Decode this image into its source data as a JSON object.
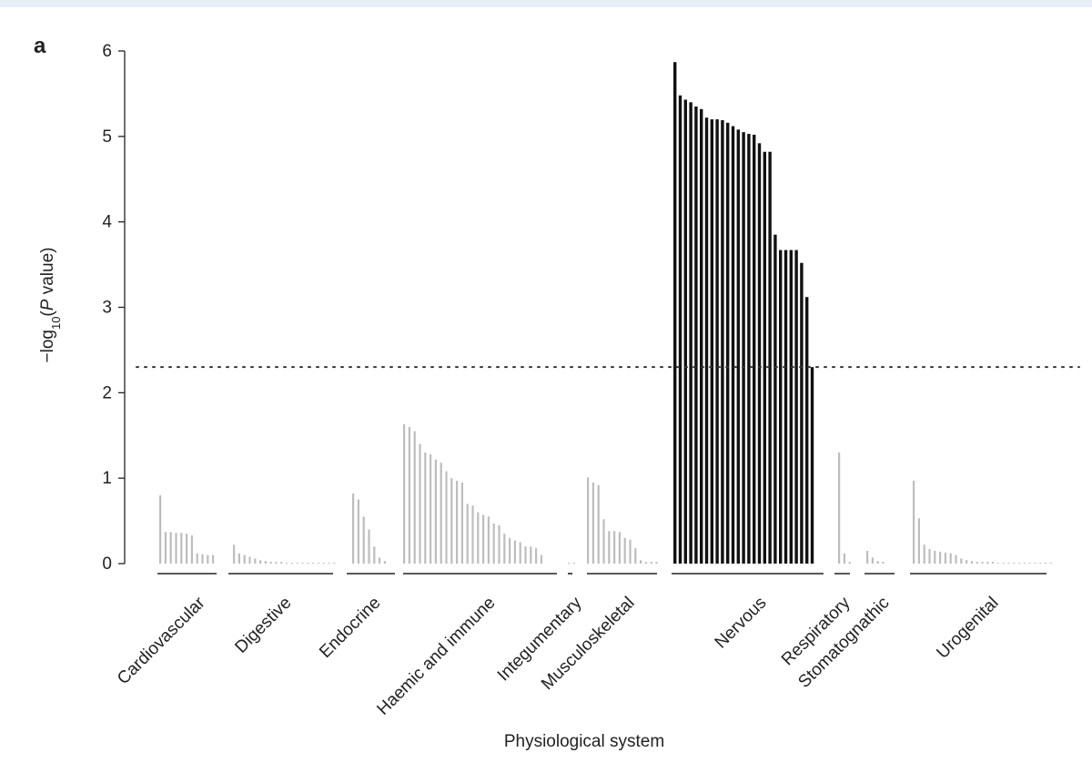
{
  "colors": {
    "topbar": "#e7eef6",
    "highlight": "#111111",
    "muted": "#bdbdbd",
    "axis": "#222222",
    "threshold": "#333333"
  },
  "chart_data": {
    "type": "bar",
    "panel_label": "a",
    "title": "",
    "xlabel": "Physiological system",
    "ylabel_prefix": "−log",
    "ylabel_sub": "10",
    "ylabel_open": "(",
    "ylabel_italic": "P",
    "ylabel_suffix": " value)",
    "ylim": [
      0,
      6
    ],
    "yticks": [
      0,
      1,
      2,
      3,
      4,
      5,
      6
    ],
    "threshold": 2.3,
    "groups": [
      {
        "name": "Cardiovascular",
        "highlight": false,
        "values": [
          0.8,
          0.37,
          0.37,
          0.36,
          0.36,
          0.35,
          0.33,
          0.12,
          0.11,
          0.1,
          0.1
        ]
      },
      {
        "name": "Digestive",
        "highlight": false,
        "values": [
          0.22,
          0.12,
          0.1,
          0.08,
          0.06,
          0.04,
          0.03,
          0.02,
          0.02,
          0.02,
          0.01,
          0.01,
          0.01,
          0.01,
          0.01,
          0.01,
          0.01,
          0.01,
          0.01,
          0.01
        ]
      },
      {
        "name": "Endocrine",
        "highlight": false,
        "values": [
          0.82,
          0.75,
          0.55,
          0.4,
          0.2,
          0.07,
          0.03
        ]
      },
      {
        "name": "Haemic and immune",
        "highlight": false,
        "values": [
          1.63,
          1.6,
          1.55,
          1.4,
          1.3,
          1.28,
          1.22,
          1.18,
          1.08,
          1.0,
          0.97,
          0.95,
          0.7,
          0.68,
          0.6,
          0.57,
          0.55,
          0.47,
          0.45,
          0.35,
          0.3,
          0.27,
          0.25,
          0.2,
          0.2,
          0.18,
          0.1
        ]
      },
      {
        "name": "Integumentary",
        "highlight": false,
        "values": [
          0.01,
          0.01
        ]
      },
      {
        "name": "Musculoskeletal",
        "highlight": false,
        "values": [
          1.01,
          0.95,
          0.92,
          0.52,
          0.38,
          0.38,
          0.37,
          0.3,
          0.28,
          0.18,
          0.04,
          0.02,
          0.02,
          0.02
        ]
      },
      {
        "name": "Nervous",
        "highlight": true,
        "values": [
          5.87,
          5.48,
          5.43,
          5.4,
          5.35,
          5.32,
          5.22,
          5.2,
          5.2,
          5.19,
          5.16,
          5.12,
          5.08,
          5.05,
          5.03,
          5.02,
          4.92,
          4.82,
          4.82,
          3.85,
          3.67,
          3.67,
          3.67,
          3.67,
          3.52,
          3.12,
          2.3
        ]
      },
      {
        "name": "Respiratory",
        "highlight": false,
        "values": [
          1.3,
          0.12,
          0.02
        ]
      },
      {
        "name": "Stomatognathic",
        "highlight": false,
        "values": [
          0.15,
          0.07,
          0.03,
          0.02
        ]
      },
      {
        "name": "Urogenital",
        "highlight": false,
        "values": [
          0.97,
          0.53,
          0.22,
          0.17,
          0.15,
          0.14,
          0.13,
          0.12,
          0.1,
          0.06,
          0.04,
          0.03,
          0.02,
          0.02,
          0.02,
          0.02,
          0.01,
          0.01,
          0.01,
          0.01,
          0.01,
          0.01,
          0.01,
          0.01,
          0.01,
          0.01,
          0.01
        ]
      }
    ]
  }
}
